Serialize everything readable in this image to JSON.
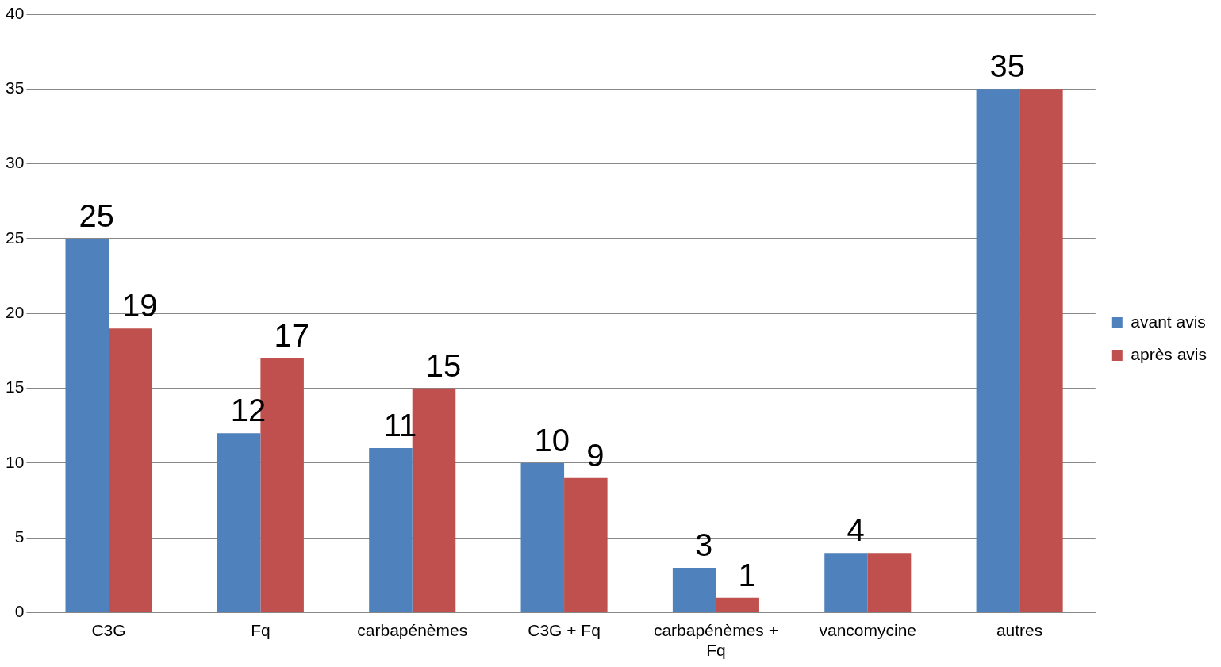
{
  "chart_data": {
    "type": "bar",
    "categories": [
      "C3G",
      "Fq",
      "carbapénèmes",
      "C3G + Fq",
      "carbapénèmes + Fq",
      "vancomycine",
      "autres"
    ],
    "series": [
      {
        "name": "avant avis",
        "color": "#4f81bd",
        "values": [
          25,
          12,
          11,
          10,
          3,
          4,
          35
        ],
        "value_labels": [
          "25",
          "12",
          "11",
          "10",
          "3",
          "4",
          "35"
        ]
      },
      {
        "name": "après avis",
        "color": "#c0504d",
        "values": [
          19,
          17,
          15,
          9,
          1,
          4,
          35
        ],
        "value_labels": [
          "19",
          "17",
          "15",
          "9",
          "1",
          null,
          null
        ]
      }
    ],
    "ylim": [
      0,
      40
    ],
    "yticks": [
      0,
      5,
      10,
      15,
      20,
      25,
      30,
      35,
      40
    ],
    "grid": "y",
    "legend": "right"
  }
}
